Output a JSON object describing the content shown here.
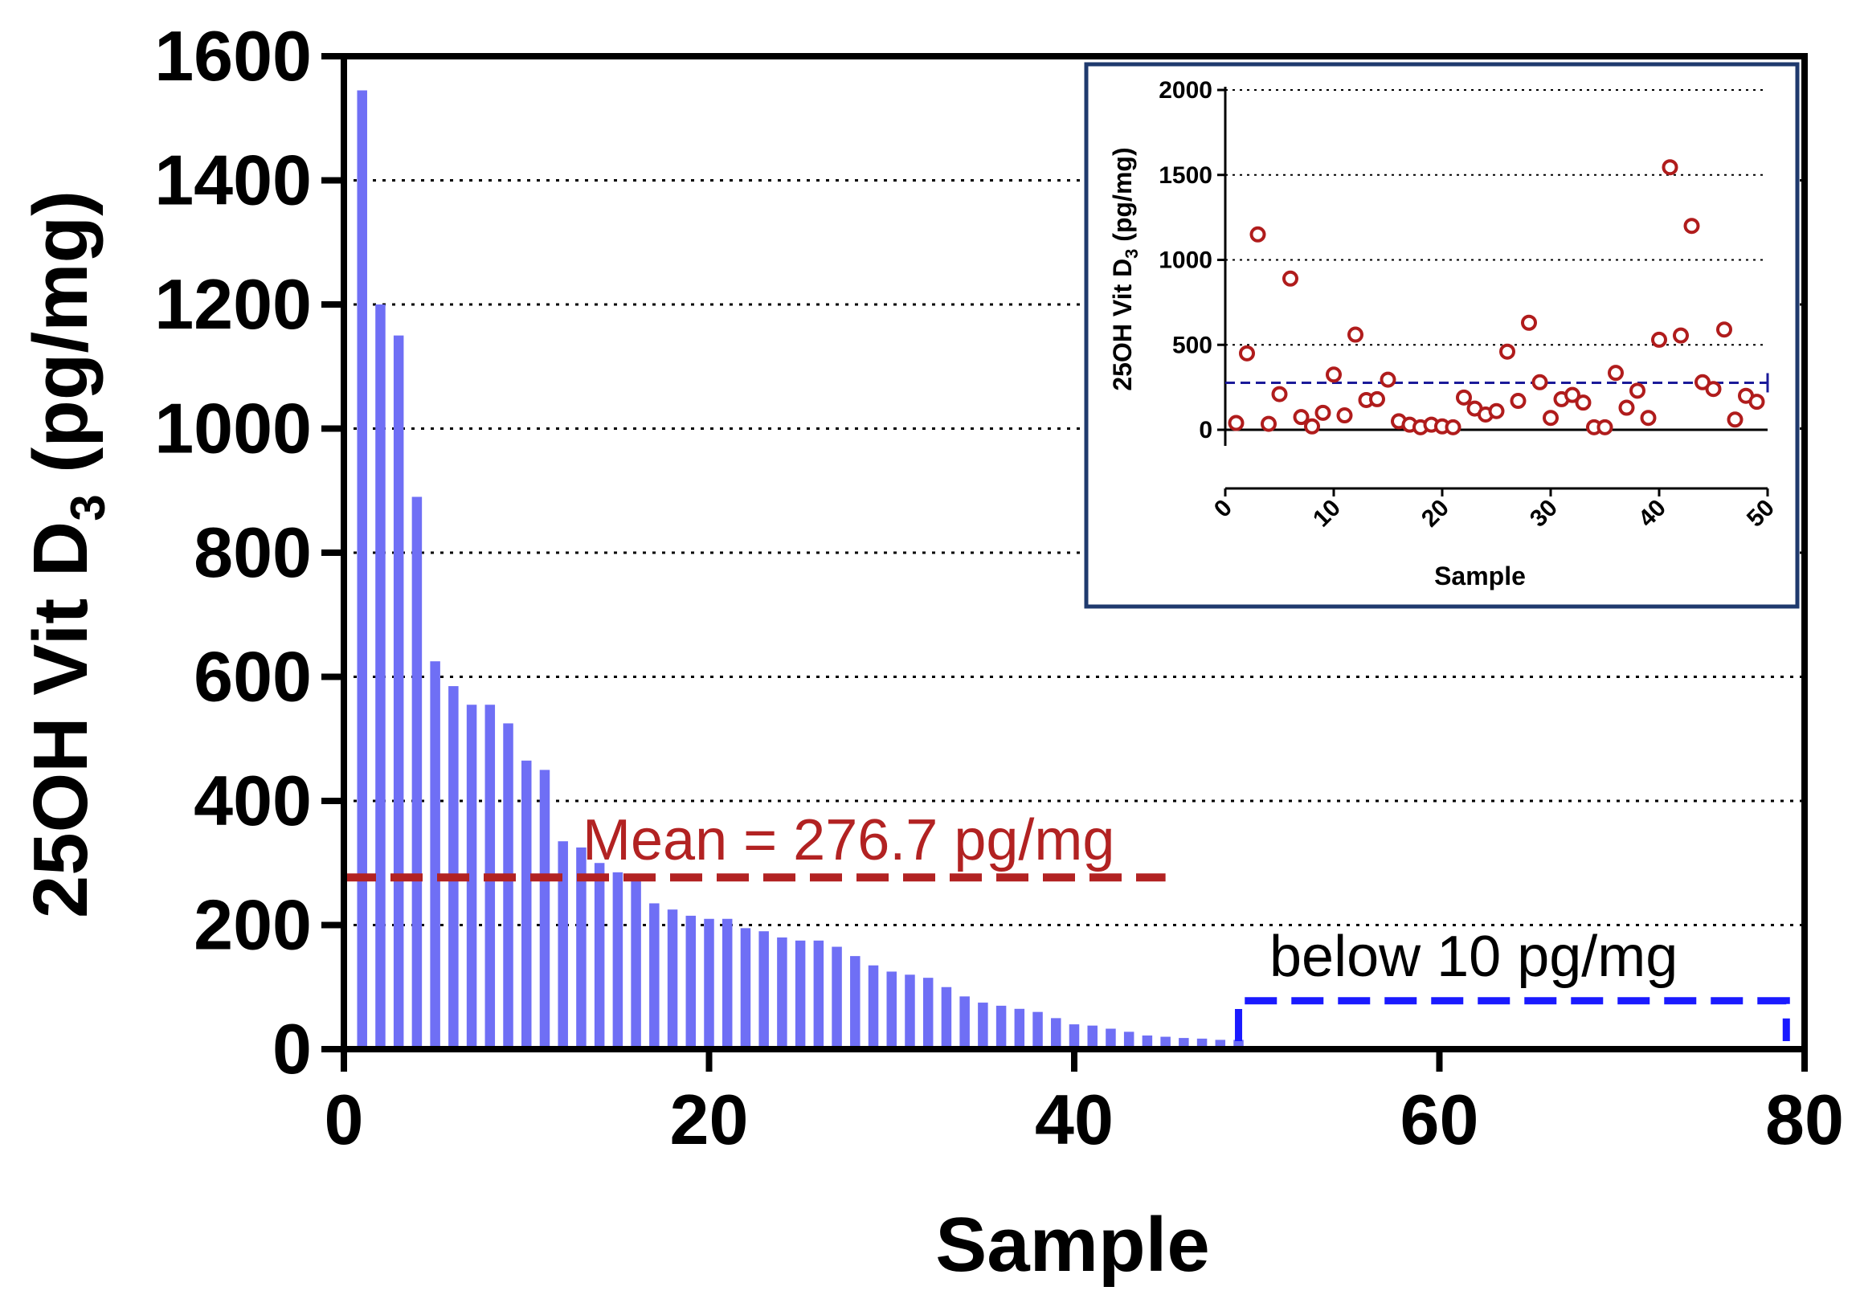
{
  "chart_data": [
    {
      "id": "main",
      "type": "bar",
      "xlabel": "Sample",
      "ylabel_main": "25OH Vit D",
      "ylabel_sub": "3",
      "ylabel_unit": " (pg/mg)",
      "xlim": [
        0,
        80
      ],
      "ylim": [
        0,
        1600
      ],
      "xticks": [
        "0",
        "20",
        "40",
        "60",
        "80"
      ],
      "yticks": [
        "0",
        "200",
        "400",
        "600",
        "800",
        "1000",
        "1200",
        "1400",
        "1600"
      ],
      "grid": "horizontal dotted",
      "bar_color": "#6f6ff5",
      "x": [
        1,
        2,
        3,
        4,
        5,
        6,
        7,
        8,
        9,
        10,
        11,
        12,
        13,
        14,
        15,
        16,
        17,
        18,
        19,
        20,
        21,
        22,
        23,
        24,
        25,
        26,
        27,
        28,
        29,
        30,
        31,
        32,
        33,
        34,
        35,
        36,
        37,
        38,
        39,
        40,
        41,
        42,
        43,
        44,
        45,
        46,
        47,
        48,
        49
      ],
      "values": [
        1545,
        1200,
        1150,
        890,
        625,
        585,
        555,
        555,
        525,
        465,
        450,
        335,
        325,
        300,
        285,
        280,
        235,
        225,
        215,
        210,
        210,
        195,
        190,
        180,
        175,
        175,
        165,
        150,
        135,
        125,
        120,
        115,
        100,
        85,
        75,
        70,
        65,
        60,
        50,
        40,
        38,
        33,
        28,
        22,
        20,
        18,
        17,
        15,
        15
      ],
      "mean": {
        "value": 276.7,
        "x_start": 0,
        "x_end": 45,
        "color": "#b22222",
        "label": "Mean = 276.7 pg/mg"
      },
      "below_bracket": {
        "x_start": 49,
        "x_end": 79,
        "y": 78,
        "color": "#1a1aff",
        "label": "below 10 pg/mg"
      }
    },
    {
      "id": "inset",
      "type": "scatter",
      "xlabel": "Sample",
      "ylabel_main": "25OH Vit D",
      "ylabel_sub": "3",
      "ylabel_unit": " (pg/mg)",
      "xlim": [
        0,
        50
      ],
      "ylim": [
        0,
        2000
      ],
      "xticks": [
        "0",
        "10",
        "20",
        "30",
        "40",
        "50"
      ],
      "yticks": [
        "0",
        "500",
        "1000",
        "1500",
        "2000"
      ],
      "grid": "horizontal dotted",
      "marker_color": "#b01c1c",
      "mean_line": {
        "value": 276.7,
        "color": "#1a1a99"
      },
      "x": [
        1,
        2,
        3,
        4,
        5,
        6,
        7,
        8,
        9,
        10,
        11,
        12,
        13,
        14,
        15,
        16,
        17,
        18,
        19,
        20,
        21,
        22,
        23,
        24,
        25,
        26,
        27,
        28,
        29,
        30,
        31,
        32,
        33,
        34,
        35,
        36,
        37,
        38,
        39,
        40,
        41,
        42,
        43,
        44,
        45,
        46,
        47,
        48,
        49
      ],
      "values": [
        40,
        450,
        1150,
        35,
        210,
        890,
        75,
        20,
        100,
        325,
        85,
        560,
        175,
        180,
        295,
        50,
        30,
        15,
        30,
        20,
        15,
        190,
        125,
        90,
        110,
        460,
        170,
        630,
        280,
        70,
        180,
        205,
        160,
        15,
        15,
        335,
        130,
        230,
        70,
        530,
        1545,
        555,
        1200,
        280,
        240,
        590,
        60,
        200,
        165
      ]
    }
  ],
  "colors": {
    "axis": "#000000",
    "grid": "#000000",
    "inset_border": "#1f3a6e"
  }
}
